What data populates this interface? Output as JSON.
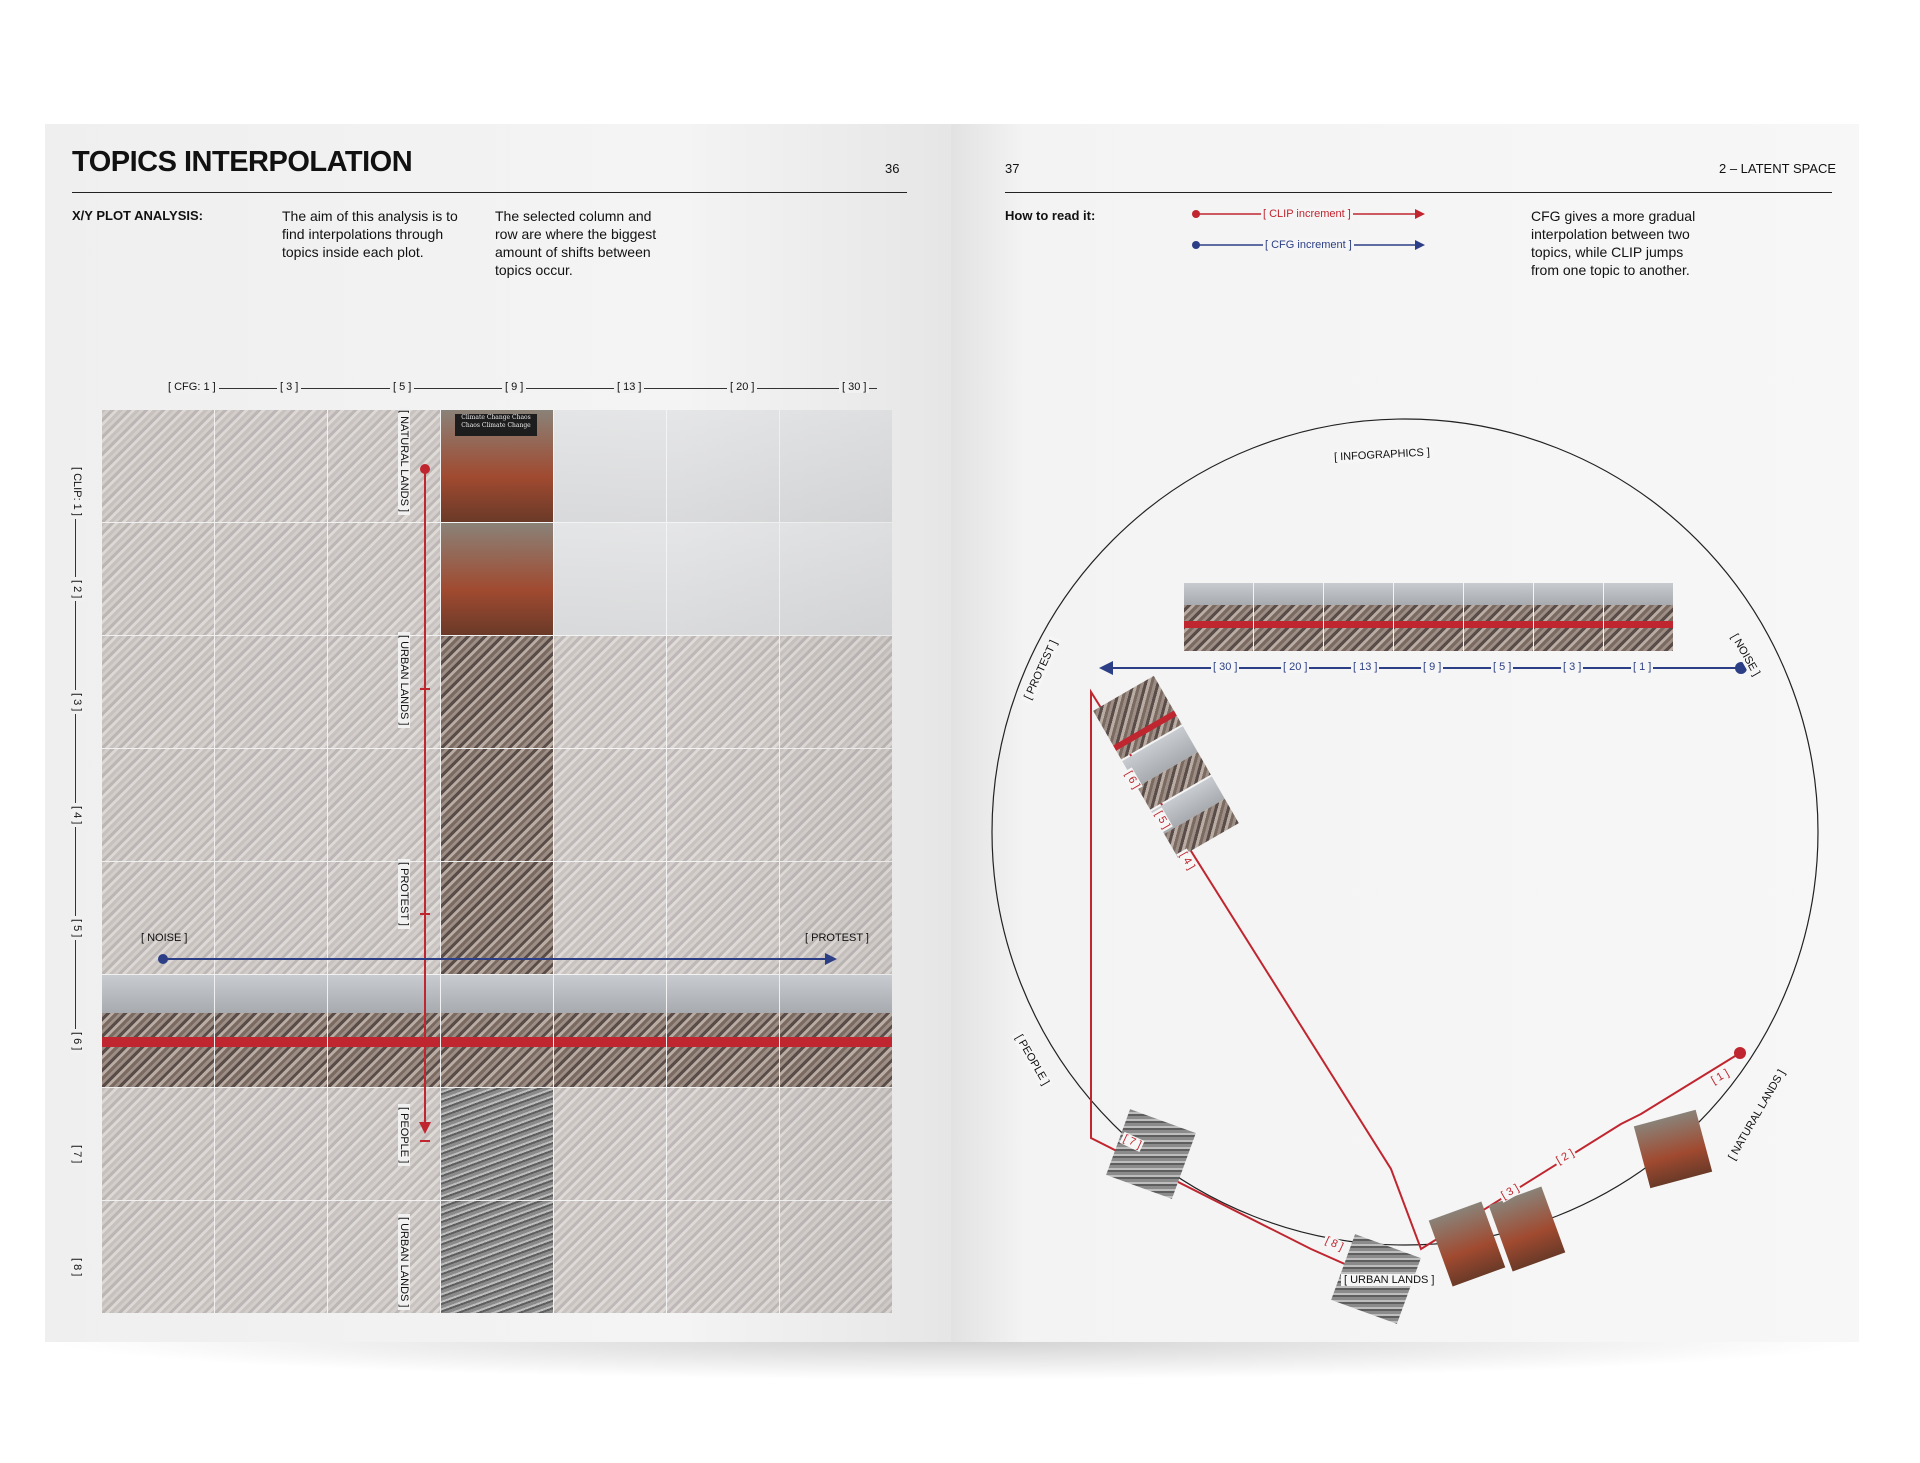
{
  "left_page": {
    "title": "TOPICS INTERPOLATION",
    "page_number": "36",
    "section_label": "X/Y PLOT ANALYSIS:",
    "paragraph_1": "The aim of this analysis is to find interpolations through topics inside each plot.",
    "paragraph_2": "The selected column and row are where the biggest amount of shifts between topics occur.",
    "cfg_ticks": [
      "[ CFG: 1 ]",
      "[ 3 ]",
      "[ 5 ]",
      "[ 9 ]",
      "[ 13 ]",
      "[ 20 ]",
      "[ 30 ]"
    ],
    "clip_ticks": [
      "[ CLIP: 1 ]",
      "[ 2 ]",
      "[ 3 ]",
      "[ 4 ]",
      "[ 5 ]",
      "[ 6 ]",
      "[ 7 ]",
      "[ 8 ]"
    ],
    "vertical_topic_labels": [
      "[ NATURAL LANDS ]",
      "[ URBAN LANDS ]",
      "[ PROTEST ]",
      "[ PEOPLE ]",
      "[ URBAN LANDS ]"
    ],
    "horizontal_labels": {
      "start": "[ NOISE ]",
      "end": "[ PROTEST ]"
    },
    "image_sign_text": "Climate Change Chaos Chaos Climate Change"
  },
  "right_page": {
    "page_number": "37",
    "section_title": "2 – LATENT SPACE",
    "how_label": "How to read it:",
    "legend": [
      {
        "label": "[ CLIP increment ]",
        "color": "#c0262f"
      },
      {
        "label": "[ CFG increment ]",
        "color": "#2c3f86"
      }
    ],
    "description": "CFG gives a more gradual interpolation between two topics, while CLIP jumps from one topic to another.",
    "circle_topics": [
      "[ INFOGRAPHICS ]",
      "[ NOISE ]",
      "[ NATURAL LANDS ]",
      "[ URBAN LANDS ]",
      "[ PEOPLE ]",
      "[ PROTEST ]"
    ],
    "cfg_path_ticks": [
      "[ 30 ]",
      "[ 20 ]",
      "[ 13 ]",
      "[ 9 ]",
      "[ 5 ]",
      "[ 3 ]",
      "[ 1 ]"
    ],
    "clip_path_ticks": [
      "[ 1 ]",
      "[ 2 ]",
      "[ 3 ]",
      "[ 4 ]",
      "[ 5 ]",
      "[ 6 ]",
      "[ 7 ]",
      "[ 8 ]"
    ]
  },
  "colors": {
    "clip_red": "#c0262f",
    "cfg_blue": "#2c3f86",
    "text": "#111111"
  }
}
